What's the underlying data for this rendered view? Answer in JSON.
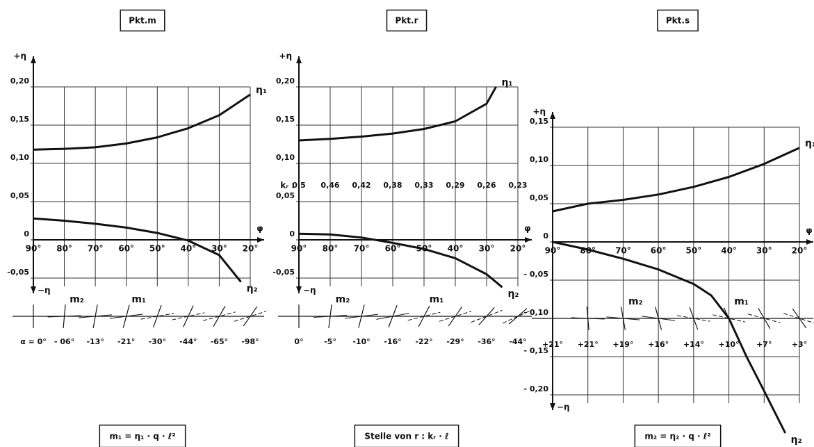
{
  "chart_data": [
    {
      "type": "line",
      "title": "Pkt.m",
      "footer": "m₁ = η₁ · q · ℓ²",
      "xlabel": "φ",
      "ylabel_top": "+η",
      "ylabel_bottom": "−η",
      "xlim": [
        90,
        20
      ],
      "ylim": [
        -0.07,
        0.24
      ],
      "xticks": [
        {
          "value": 90,
          "label": "90°"
        },
        {
          "value": 80,
          "label": "80°"
        },
        {
          "value": 70,
          "label": "70°"
        },
        {
          "value": 60,
          "label": "60°"
        },
        {
          "value": 50,
          "label": "50°"
        },
        {
          "value": 40,
          "label": "40°"
        },
        {
          "value": 30,
          "label": "30°"
        },
        {
          "value": 20,
          "label": "20°"
        }
      ],
      "yticks": [
        {
          "value": 0.2,
          "label": "0,20"
        },
        {
          "value": 0.15,
          "label": "0,15"
        },
        {
          "value": 0.1,
          "label": "0,10"
        },
        {
          "value": 0.05,
          "label": "0,05"
        },
        0,
        {
          "value": -0.05,
          "label": "-0,05"
        }
      ],
      "series": [
        {
          "name": "η₁",
          "color": "#111111",
          "x": [
            90,
            80,
            70,
            60,
            50,
            40,
            30,
            20
          ],
          "values": [
            0.118,
            0.119,
            0.121,
            0.126,
            0.134,
            0.146,
            0.163,
            0.19
          ]
        },
        {
          "name": "η₂",
          "color": "#111111",
          "x": [
            90,
            80,
            70,
            60,
            50,
            40,
            30,
            23
          ],
          "values": [
            0.028,
            0.025,
            0.021,
            0.016,
            0.009,
            -0.001,
            -0.02,
            -0.055
          ]
        }
      ],
      "marker_labels": [
        "m₂",
        "m₁"
      ],
      "alpha_labels": [
        "α = 0°",
        "- 06°",
        "-13°",
        "-21°",
        "-30°",
        "-44°",
        "-65°",
        "-98°"
      ]
    },
    {
      "type": "line",
      "title": "Pkt.r",
      "footer": "Stelle von r : kᵣ · ℓ",
      "xlabel": "φ",
      "ylabel_top": "+η",
      "ylabel_bottom": "−η",
      "xlim": [
        90,
        20
      ],
      "ylim": [
        -0.07,
        0.24
      ],
      "xticks": [
        {
          "value": 90,
          "label": "90°"
        },
        {
          "value": 80,
          "label": "80°"
        },
        {
          "value": 70,
          "label": "70°"
        },
        {
          "value": 60,
          "label": "60°"
        },
        {
          "value": 50,
          "label": "50°"
        },
        {
          "value": 40,
          "label": "40°"
        },
        {
          "value": 30,
          "label": "30°"
        },
        {
          "value": 20,
          "label": "20°"
        }
      ],
      "yticks": [
        {
          "value": 0.2,
          "label": "0,20"
        },
        {
          "value": 0.15,
          "label": "0,15"
        },
        {
          "value": 0.1,
          "label": "0,10"
        },
        {
          "value": 0.05,
          "label": "0,05"
        },
        0,
        {
          "value": -0.05,
          "label": "-0,05"
        }
      ],
      "series": [
        {
          "name": "η₁",
          "color": "#111111",
          "x": [
            90,
            80,
            70,
            60,
            50,
            40,
            30,
            27
          ],
          "values": [
            0.13,
            0.132,
            0.135,
            0.139,
            0.145,
            0.155,
            0.178,
            0.2
          ]
        },
        {
          "name": "η₂",
          "color": "#111111",
          "x": [
            90,
            80,
            70,
            60,
            50,
            40,
            30,
            25
          ],
          "values": [
            0.008,
            0.007,
            0.003,
            -0.004,
            -0.012,
            -0.024,
            -0.045,
            -0.062
          ]
        }
      ],
      "kr_label": "kᵣ :",
      "kr_values": [
        "0,5",
        "0,46",
        "0,42",
        "0,38",
        "0,33",
        "0,29",
        "0,26",
        "0,23"
      ],
      "marker_labels": [
        "m₂",
        "m₁"
      ],
      "alpha_labels": [
        "0°",
        "-5°",
        "-10°",
        "-16°",
        "-22°",
        "-29°",
        "-36°",
        "-44°"
      ]
    },
    {
      "type": "line",
      "title": "Pkt.s",
      "footer": "m₂ = η₂ · q · ℓ²",
      "xlabel": "φ",
      "ylabel_top": "+η",
      "ylabel_bottom": "−η",
      "xlim": [
        90,
        20
      ],
      "ylim": [
        -0.22,
        0.17
      ],
      "xticks": [
        {
          "value": 90,
          "label": "90°"
        },
        {
          "value": 80,
          "label": "80°"
        },
        {
          "value": 70,
          "label": "70°"
        },
        {
          "value": 60,
          "label": "60°"
        },
        {
          "value": 50,
          "label": "50°"
        },
        {
          "value": 40,
          "label": "40°"
        },
        {
          "value": 30,
          "label": "30°"
        },
        {
          "value": 20,
          "label": "20°"
        }
      ],
      "yticks": [
        {
          "value": 0.15,
          "label": "0,15"
        },
        {
          "value": 0.1,
          "label": "0,10"
        },
        {
          "value": 0.05,
          "label": "0,05"
        },
        0,
        {
          "value": -0.05,
          "label": "- 0,05"
        },
        {
          "value": -0.1,
          "label": "- 0,10"
        },
        {
          "value": -0.15,
          "label": "- 0,15"
        },
        {
          "value": -0.2,
          "label": "- 0,20"
        }
      ],
      "series": [
        {
          "name": "η₁",
          "color": "#111111",
          "x": [
            90,
            80,
            70,
            60,
            50,
            40,
            30,
            20
          ],
          "values": [
            0.04,
            0.05,
            0.055,
            0.062,
            0.072,
            0.085,
            0.102,
            0.123
          ]
        },
        {
          "name": "η₂",
          "color": "#111111",
          "x": [
            90,
            80,
            70,
            60,
            50,
            45,
            40,
            35,
            30,
            24
          ],
          "values": [
            0,
            -0.01,
            -0.022,
            -0.036,
            -0.055,
            -0.07,
            -0.1,
            -0.15,
            -0.195,
            -0.25
          ]
        }
      ],
      "marker_labels": [
        "m₂",
        "m₁"
      ],
      "alpha_labels": [
        "+21°",
        "+21°",
        "+19°",
        "+16°",
        "+14°",
        "+10°",
        "+7°",
        "+3°"
      ]
    }
  ]
}
